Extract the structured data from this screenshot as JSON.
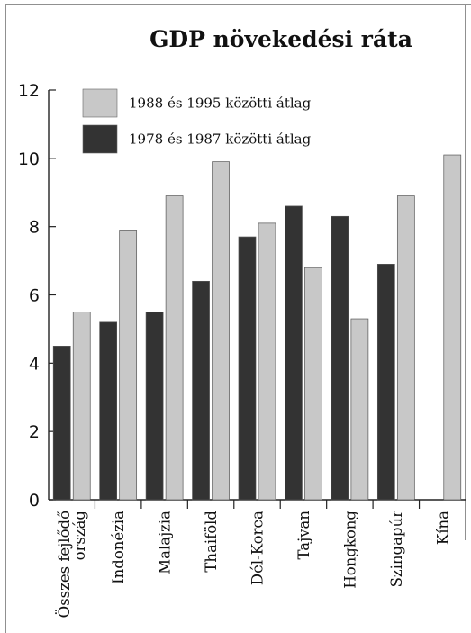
{
  "chart_data": {
    "type": "bar",
    "title": "GDP növekedési ráta",
    "xlabel": "",
    "ylabel": "",
    "ylim": [
      0,
      12
    ],
    "yticks": [
      0,
      2,
      4,
      6,
      8,
      10,
      12
    ],
    "categories": [
      [
        "Összes fejlődő",
        "ország"
      ],
      [
        "Indonézia"
      ],
      [
        "Malajzia"
      ],
      [
        "Thaiföld"
      ],
      [
        "Dél-Korea"
      ],
      [
        "Tajvan"
      ],
      [
        "Hongkong"
      ],
      [
        "Szingapúr"
      ],
      [
        "Kína"
      ]
    ],
    "series": [
      {
        "name": "1978 és 1987 közötti átlag",
        "color": "#333333",
        "values": [
          4.5,
          5.2,
          5.5,
          6.4,
          7.7,
          8.6,
          8.3,
          6.9,
          null
        ]
      },
      {
        "name": "1988 és 1995 közötti átlag",
        "color": "#c8c8c8",
        "values": [
          5.5,
          7.9,
          8.9,
          9.9,
          8.1,
          6.8,
          5.3,
          8.9,
          10.1
        ]
      }
    ],
    "legend_order": [
      1,
      0
    ],
    "legend_position": "top-left",
    "grid": false
  }
}
